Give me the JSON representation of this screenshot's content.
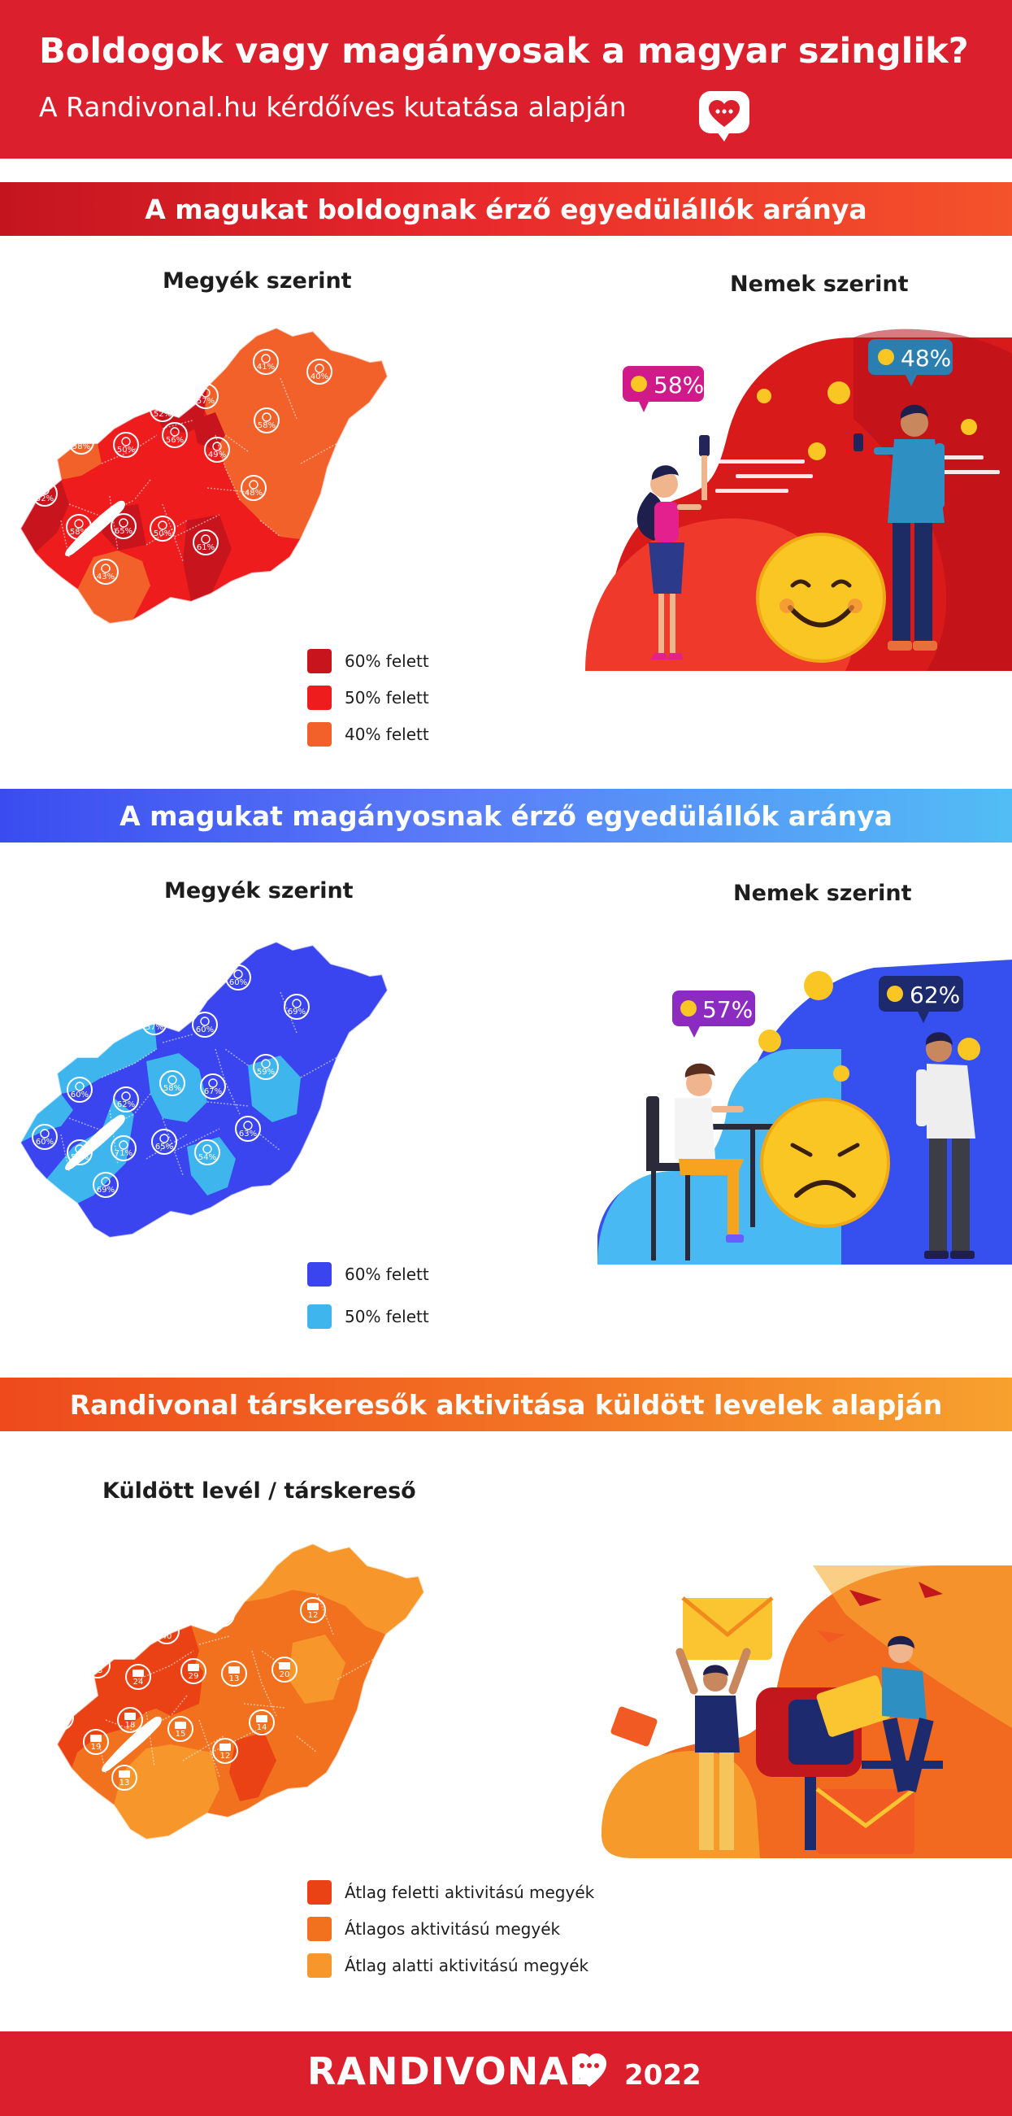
{
  "header": {
    "title": "Boldogok vagy magányosak a magyar szinglik?",
    "subtitle": "A Randivonal.hu kérdőíves kutatása alapján",
    "icon": "chat-heart-icon"
  },
  "colors": {
    "brand_red": "#dc1f2c",
    "happy_60": "#c8141d",
    "happy_50": "#ee1c1c",
    "happy_40": "#f3612b",
    "lonely_60": "#3a44ef",
    "lonely_50": "#3fb5ee",
    "activity_above": "#ea4214",
    "activity_avg": "#f2711e",
    "activity_below": "#f7972b"
  },
  "happy": {
    "banner": "A magukat boldognak érző egyedülállók aránya",
    "county_label": "Megyék szerint",
    "gender_label": "Nemek szerint",
    "female": "58%",
    "male": "48%",
    "county_values": [
      "60%",
      "41%",
      "40%",
      "49%",
      "52%",
      "52%",
      "57%",
      "58%",
      "67%",
      "58%",
      "50%",
      "56%",
      "49%",
      "52%",
      "58%",
      "65%",
      "50%",
      "48%",
      "61%",
      "43%"
    ],
    "legend": [
      "60% felett",
      "50% felett",
      "40% felett"
    ]
  },
  "lonely": {
    "banner": "A magukat magányosnak érző egyedülállók aránya",
    "county_label": "Megyék szerint",
    "gender_label": "Nemek szerint",
    "female": "57%",
    "male": "62%",
    "county_values": [
      "68%",
      "60%",
      "69%",
      "57%",
      "53%",
      "57%",
      "60%",
      "50%",
      "60%",
      "58%",
      "59%",
      "62%",
      "67%",
      "60%",
      "53%",
      "71%",
      "65%",
      "54%",
      "63%",
      "69%"
    ],
    "legend": [
      "60% felett",
      "50% felett"
    ]
  },
  "activity": {
    "banner": "Randivonal társkeresők aktivitása küldött levelek alapján",
    "map_label": "Küldött levél / társkereső",
    "county_values": [
      "15",
      "16",
      "12",
      "22",
      "18",
      "17",
      "40",
      "21",
      "23",
      "29",
      "13",
      "20",
      "24",
      "17",
      "18",
      "15",
      "14",
      "19",
      "12",
      "13"
    ],
    "legend": [
      "Átlag feletti aktivitású megyék",
      "Átlagos aktivitású megyék",
      "Átlag alatti aktivitású megyék"
    ]
  },
  "footer": {
    "brand": "RANDIVONAL",
    "year": "2022"
  }
}
